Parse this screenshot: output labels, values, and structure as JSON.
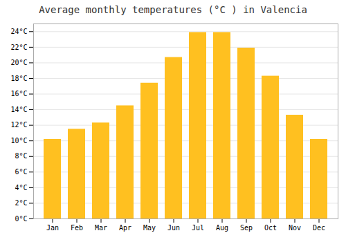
{
  "chart_data": {
    "type": "bar",
    "title": "Average monthly temperatures (°C ) in Valencia",
    "categories": [
      "Jan",
      "Feb",
      "Mar",
      "Apr",
      "May",
      "Jun",
      "Jul",
      "Aug",
      "Sep",
      "Oct",
      "Nov",
      "Dec"
    ],
    "values": [
      10.2,
      11.5,
      12.3,
      14.5,
      17.4,
      20.7,
      23.9,
      23.9,
      21.9,
      18.3,
      13.3,
      10.2
    ],
    "color": "#FFC020",
    "ylim": [
      0,
      25
    ],
    "yticks": [
      {
        "value": 0,
        "label": "0°C"
      },
      {
        "value": 2,
        "label": "2°C"
      },
      {
        "value": 4,
        "label": "4°C"
      },
      {
        "value": 6,
        "label": "6°C"
      },
      {
        "value": 8,
        "label": "8°C"
      },
      {
        "value": 10,
        "label": "10°C"
      },
      {
        "value": 12,
        "label": "12°C"
      },
      {
        "value": 14,
        "label": "14°C"
      },
      {
        "value": 16,
        "label": "16°C"
      },
      {
        "value": 18,
        "label": "18°C"
      },
      {
        "value": 20,
        "label": "20°C"
      },
      {
        "value": 22,
        "label": "22°C"
      },
      {
        "value": 24,
        "label": "24°C"
      }
    ],
    "grid": true
  }
}
